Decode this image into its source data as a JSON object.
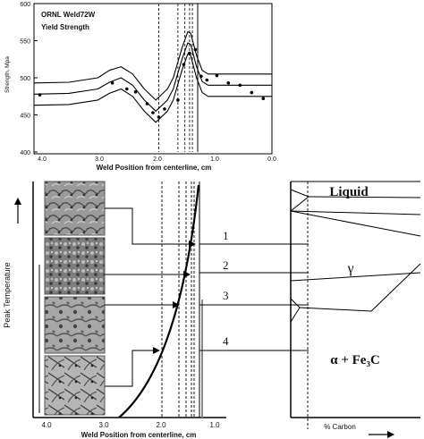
{
  "top_chart": {
    "title": "ORNL Weld72W",
    "subtitle": "Yield Strength",
    "ylabel": "Strength, Mpa",
    "xlabel": "Weld Position from centerline, cm",
    "yticks": [
      "400",
      "450",
      "500",
      "550",
      "600"
    ],
    "xticks": [
      "4.0",
      "3.0",
      "2.0",
      "1.0",
      "0.0"
    ]
  },
  "chart_data": {
    "type": "line",
    "title": "ORNL Weld72W",
    "subtitle": "Yield Strength",
    "xlabel": "Weld Position from centerline, cm",
    "ylabel": "Strength, Mpa",
    "xlim": [
      4.1,
      0.0
    ],
    "ylim": [
      400,
      600
    ],
    "series": [
      {
        "x": [
          4.1,
          3.5,
          3.0,
          2.8,
          2.6,
          2.4,
          2.2,
          2.0,
          1.8,
          1.7,
          1.55,
          1.45,
          1.4,
          1.3,
          1.2,
          1.1,
          1.0,
          0.5,
          0.0
        ],
        "y": [
          493,
          494,
          500,
          510,
          515,
          505,
          485,
          470,
          485,
          500,
          540,
          562,
          560,
          530,
          510,
          505,
          505,
          505,
          505
        ]
      },
      {
        "x": [
          4.1,
          3.5,
          3.0,
          2.8,
          2.6,
          2.4,
          2.2,
          2.0,
          1.8,
          1.7,
          1.55,
          1.45,
          1.4,
          1.3,
          1.2,
          1.1,
          1.0,
          0.5,
          0.0
        ],
        "y": [
          478,
          479,
          485,
          494,
          500,
          490,
          470,
          455,
          470,
          485,
          525,
          547,
          545,
          515,
          495,
          490,
          490,
          490,
          490
        ]
      },
      {
        "x": [
          4.1,
          3.5,
          3.0,
          2.8,
          2.6,
          2.4,
          2.2,
          2.0,
          1.8,
          1.7,
          1.55,
          1.45,
          1.4,
          1.3,
          1.2,
          1.1,
          1.0,
          0.5,
          0.0
        ],
        "y": [
          463,
          464,
          470,
          479,
          485,
          475,
          455,
          440,
          455,
          470,
          510,
          532,
          530,
          500,
          480,
          475,
          475,
          475,
          475
        ]
      }
    ],
    "points": {
      "x": [
        4.0,
        2.75,
        2.5,
        2.35,
        2.15,
        2.05,
        1.95,
        1.85,
        1.62,
        1.52,
        1.42,
        1.32,
        1.22,
        1.12,
        0.95,
        0.75,
        0.55,
        0.35,
        0.15
      ],
      "y": [
        477,
        493,
        485,
        481,
        465,
        453,
        447,
        458,
        470,
        518,
        533,
        538,
        502,
        497,
        503,
        493,
        490,
        480,
        472
      ]
    },
    "dashed_lines_x": [
      1.95,
      1.62,
      1.5,
      1.42,
      1.37
    ],
    "solid_line_x": 1.28
  },
  "bottom": {
    "ylabel": "Peak Temperature",
    "xlabel": "Weld Position from centerline, cm",
    "xticks": [
      "4.0",
      "3.0",
      "2.0",
      "1.0"
    ],
    "zones": [
      "1",
      "2",
      "3",
      "4"
    ],
    "phase_liquid": "Liquid",
    "phase_gamma": "γ",
    "phase_alpha": "α + Fe₃C",
    "carbon_label": "% Carbon"
  }
}
